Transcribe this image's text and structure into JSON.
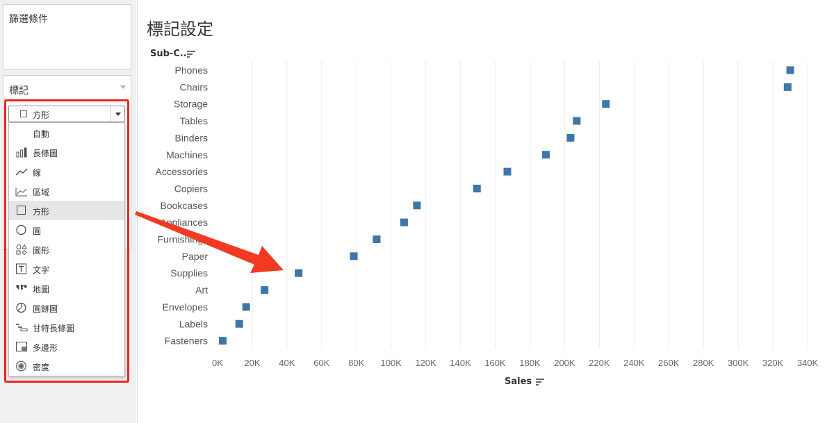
{
  "filters": {
    "title": "篩選條件"
  },
  "marks": {
    "title": "標記",
    "selected_type": "方形",
    "menu": [
      {
        "label": "自動",
        "icon": "none"
      },
      {
        "label": "長條圖",
        "icon": "bar-chart-icon"
      },
      {
        "label": "線",
        "icon": "line-icon"
      },
      {
        "label": "區域",
        "icon": "area-icon"
      },
      {
        "label": "方形",
        "icon": "square-icon",
        "selected": true
      },
      {
        "label": "圓",
        "icon": "circle-icon"
      },
      {
        "label": "圖形",
        "icon": "shapes-icon"
      },
      {
        "label": "文字",
        "icon": "text-icon"
      },
      {
        "label": "地圖",
        "icon": "map-icon"
      },
      {
        "label": "圓餅圖",
        "icon": "pie-icon"
      },
      {
        "label": "甘特長條圖",
        "icon": "gantt-icon"
      },
      {
        "label": "多邊形",
        "icon": "polygon-icon"
      },
      {
        "label": "密度",
        "icon": "density-icon"
      }
    ]
  },
  "view": {
    "title": "標記設定",
    "row_header": "Sub-C..",
    "x_axis_title": "Sales"
  },
  "colors": {
    "mark": "#3d76a8",
    "highlight": "#e8271f",
    "arrow": "#f23a22"
  },
  "chart_data": {
    "type": "scatter",
    "mark_shape": "square",
    "xlabel": "Sales",
    "ylabel": "Sub-C..",
    "xlim": [
      0,
      350000
    ],
    "x_ticks": [
      0,
      20000,
      40000,
      60000,
      80000,
      100000,
      120000,
      140000,
      160000,
      180000,
      200000,
      220000,
      240000,
      260000,
      280000,
      300000,
      320000,
      340000
    ],
    "x_tick_labels": [
      "0K",
      "20K",
      "40K",
      "60K",
      "80K",
      "100K",
      "120K",
      "140K",
      "160K",
      "180K",
      "200K",
      "220K",
      "240K",
      "260K",
      "280K",
      "300K",
      "320K",
      "340K"
    ],
    "grid": true,
    "categories": [
      "Phones",
      "Chairs",
      "Storage",
      "Tables",
      "Binders",
      "Machines",
      "Accessories",
      "Copiers",
      "Bookcases",
      "Appliances",
      "Furnishings",
      "Paper",
      "Supplies",
      "Art",
      "Envelopes",
      "Labels",
      "Fasteners"
    ],
    "values": [
      330000,
      328500,
      223800,
      207000,
      203400,
      189200,
      167000,
      149500,
      114900,
      107500,
      91700,
      78500,
      46700,
      27100,
      16500,
      12500,
      3000
    ]
  }
}
